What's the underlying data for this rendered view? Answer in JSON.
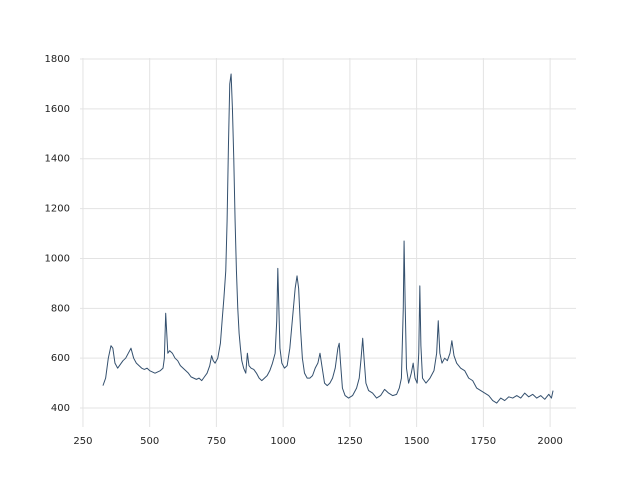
{
  "chart_data": {
    "type": "line",
    "color": "#34506e",
    "grid": true,
    "xlim": [
      239,
      2097
    ],
    "ylim": [
      324,
      1804
    ],
    "xticks": [
      250,
      500,
      750,
      1000,
      1250,
      1500,
      1750,
      2000
    ],
    "yticks": [
      400,
      600,
      800,
      1000,
      1200,
      1400,
      1600,
      1800
    ],
    "x": [
      325,
      335,
      345,
      355,
      362,
      370,
      380,
      390,
      400,
      410,
      420,
      430,
      440,
      450,
      460,
      470,
      480,
      490,
      500,
      510,
      520,
      530,
      540,
      550,
      555,
      560,
      564,
      568,
      575,
      585,
      595,
      605,
      615,
      625,
      635,
      645,
      655,
      665,
      675,
      685,
      695,
      705,
      715,
      725,
      732,
      738,
      745,
      755,
      765,
      772,
      778,
      785,
      790,
      795,
      800,
      805,
      810,
      815,
      820,
      825,
      830,
      835,
      840,
      845,
      852,
      860,
      866,
      872,
      880,
      890,
      900,
      910,
      920,
      930,
      940,
      950,
      960,
      970,
      976,
      980,
      984,
      988,
      995,
      1005,
      1015,
      1025,
      1035,
      1045,
      1052,
      1058,
      1065,
      1072,
      1080,
      1090,
      1100,
      1110,
      1120,
      1130,
      1138,
      1145,
      1155,
      1165,
      1175,
      1185,
      1195,
      1205,
      1210,
      1215,
      1222,
      1232,
      1245,
      1260,
      1275,
      1285,
      1292,
      1298,
      1303,
      1310,
      1320,
      1335,
      1350,
      1365,
      1380,
      1395,
      1410,
      1425,
      1435,
      1443,
      1450,
      1453,
      1457,
      1462,
      1470,
      1480,
      1487,
      1494,
      1502,
      1508,
      1512,
      1516,
      1522,
      1535,
      1550,
      1565,
      1575,
      1581,
      1587,
      1595,
      1605,
      1615,
      1625,
      1632,
      1640,
      1650,
      1665,
      1680,
      1695,
      1710,
      1725,
      1740,
      1755,
      1770,
      1785,
      1800,
      1815,
      1830,
      1845,
      1860,
      1875,
      1890,
      1905,
      1920,
      1935,
      1950,
      1965,
      1980,
      1995,
      2005,
      2011
    ],
    "values": [
      490,
      520,
      600,
      650,
      640,
      580,
      560,
      575,
      590,
      600,
      620,
      640,
      600,
      580,
      570,
      560,
      555,
      560,
      550,
      545,
      540,
      545,
      550,
      560,
      600,
      780,
      700,
      620,
      630,
      620,
      600,
      590,
      570,
      560,
      550,
      540,
      525,
      520,
      515,
      520,
      510,
      525,
      540,
      570,
      610,
      590,
      580,
      600,
      660,
      760,
      840,
      950,
      1150,
      1450,
      1700,
      1740,
      1600,
      1400,
      1150,
      950,
      800,
      700,
      640,
      590,
      560,
      540,
      620,
      570,
      560,
      555,
      540,
      520,
      510,
      520,
      530,
      550,
      580,
      620,
      750,
      960,
      800,
      640,
      580,
      560,
      570,
      640,
      760,
      880,
      930,
      880,
      720,
      600,
      540,
      520,
      520,
      530,
      560,
      580,
      620,
      570,
      500,
      490,
      500,
      520,
      560,
      640,
      660,
      580,
      480,
      450,
      440,
      450,
      480,
      520,
      600,
      680,
      600,
      500,
      470,
      460,
      440,
      450,
      475,
      460,
      450,
      455,
      480,
      520,
      800,
      1070,
      820,
      560,
      500,
      540,
      580,
      520,
      500,
      620,
      890,
      650,
      520,
      500,
      520,
      550,
      620,
      750,
      620,
      580,
      600,
      590,
      620,
      670,
      610,
      580,
      560,
      550,
      520,
      510,
      480,
      470,
      460,
      450,
      430,
      420,
      440,
      430,
      445,
      440,
      450,
      440,
      460,
      445,
      455,
      440,
      450,
      435,
      455,
      440,
      470
    ]
  }
}
